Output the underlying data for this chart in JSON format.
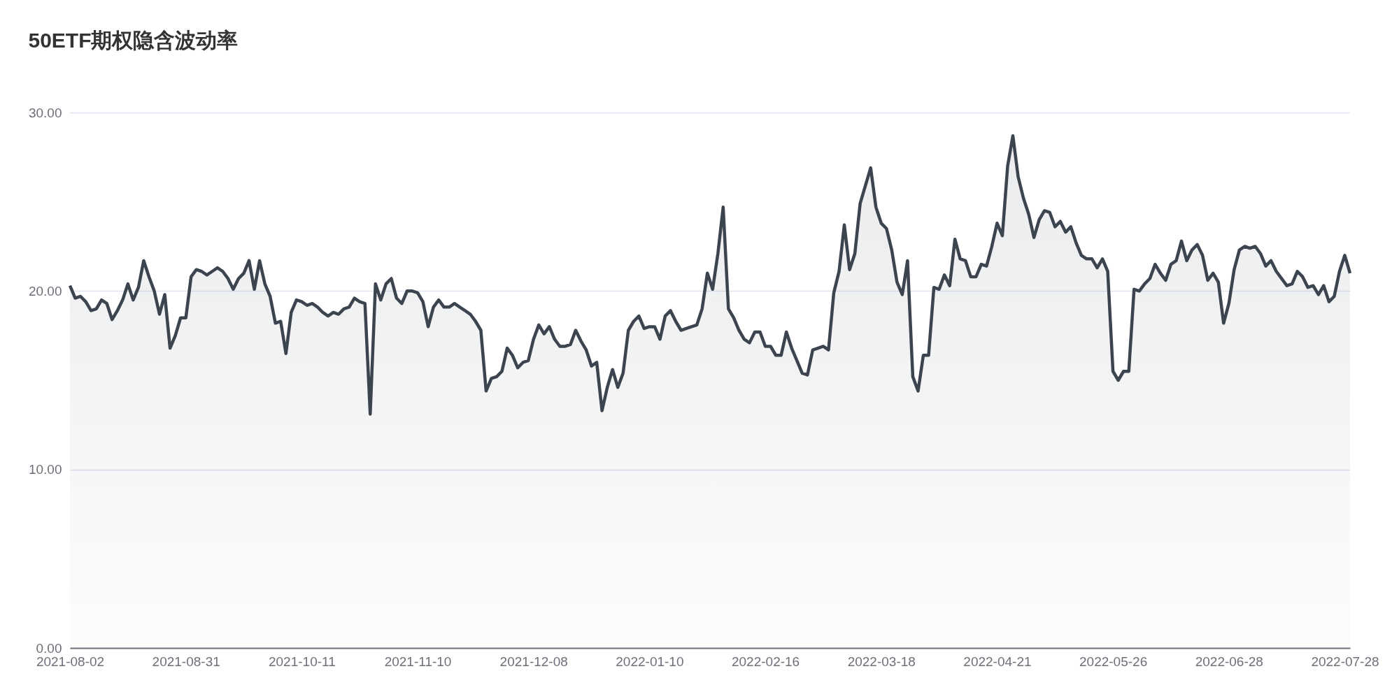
{
  "chart_data": {
    "type": "area",
    "title": "50ETF期权隐含波动率",
    "categories": [
      "2021-08-02",
      null,
      null,
      null,
      null,
      null,
      null,
      null,
      null,
      null,
      null,
      null,
      null,
      null,
      null,
      null,
      null,
      null,
      null,
      null,
      null,
      null,
      "2021-08-31",
      null,
      null,
      null,
      null,
      null,
      null,
      null,
      null,
      null,
      null,
      null,
      null,
      null,
      null,
      null,
      null,
      null,
      null,
      null,
      null,
      null,
      "2021-10-11",
      null,
      null,
      null,
      null,
      null,
      null,
      null,
      null,
      null,
      null,
      null,
      null,
      null,
      null,
      null,
      null,
      null,
      null,
      null,
      null,
      null,
      "2021-11-10",
      null,
      null,
      null,
      null,
      null,
      null,
      null,
      null,
      null,
      null,
      null,
      null,
      null,
      null,
      null,
      null,
      null,
      null,
      null,
      null,
      null,
      "2021-12-08",
      null,
      null,
      null,
      null,
      null,
      null,
      null,
      null,
      null,
      null,
      null,
      null,
      null,
      null,
      null,
      null,
      null,
      null,
      null,
      null,
      null,
      "2022-01-10",
      null,
      null,
      null,
      null,
      null,
      null,
      null,
      null,
      null,
      null,
      null,
      null,
      null,
      null,
      null,
      null,
      null,
      null,
      null,
      null,
      null,
      "2022-02-16",
      null,
      null,
      null,
      null,
      null,
      null,
      null,
      null,
      null,
      null,
      null,
      null,
      null,
      null,
      null,
      null,
      null,
      null,
      null,
      null,
      null,
      "2022-03-18",
      null,
      null,
      null,
      null,
      null,
      null,
      null,
      null,
      null,
      null,
      null,
      null,
      null,
      null,
      null,
      null,
      null,
      null,
      null,
      null,
      null,
      "2022-04-21",
      null,
      null,
      null,
      null,
      null,
      null,
      null,
      null,
      null,
      null,
      null,
      null,
      null,
      null,
      null,
      null,
      null,
      null,
      null,
      null,
      null,
      "2022-05-26",
      null,
      null,
      null,
      null,
      null,
      null,
      null,
      null,
      null,
      null,
      null,
      null,
      null,
      null,
      null,
      null,
      null,
      null,
      null,
      null,
      null,
      "2022-06-28",
      null,
      null,
      null,
      null,
      null,
      null,
      null,
      null,
      null,
      null,
      null,
      null,
      null,
      null,
      null,
      null,
      null,
      null,
      null,
      null,
      null,
      "2022-07-28",
      null
    ],
    "series": [
      {
        "color": "#3b444f",
        "values": [
          20.3,
          19.6,
          19.7,
          19.4,
          18.9,
          19.0,
          19.5,
          19.3,
          18.4,
          18.9,
          19.5,
          20.4,
          19.5,
          20.2,
          21.7,
          20.8,
          20.0,
          18.7,
          19.8,
          16.8,
          17.5,
          18.5,
          18.5,
          20.8,
          21.2,
          21.1,
          20.9,
          21.1,
          21.3,
          21.1,
          20.7,
          20.1,
          20.7,
          21.0,
          21.7,
          20.1,
          21.7,
          20.4,
          19.7,
          18.2,
          18.3,
          16.5,
          18.8,
          19.5,
          19.4,
          19.2,
          19.3,
          19.1,
          18.8,
          18.6,
          18.8,
          18.7,
          19.0,
          19.1,
          19.6,
          19.4,
          19.3,
          13.1,
          20.4,
          19.5,
          20.4,
          20.7,
          19.6,
          19.3,
          20.0,
          20.0,
          19.9,
          19.4,
          18.0,
          19.1,
          19.5,
          19.1,
          19.1,
          19.3,
          19.1,
          18.9,
          18.7,
          18.3,
          17.8,
          14.4,
          15.1,
          15.2,
          15.5,
          16.8,
          16.4,
          15.7,
          16.0,
          16.1,
          17.3,
          18.1,
          17.6,
          18.0,
          17.3,
          16.9,
          16.9,
          17.0,
          17.8,
          17.2,
          16.7,
          15.8,
          16.0,
          13.3,
          14.6,
          15.6,
          14.6,
          15.4,
          17.8,
          18.3,
          18.6,
          17.9,
          18.0,
          18.0,
          17.3,
          18.6,
          18.9,
          18.3,
          17.8,
          17.9,
          18.0,
          18.1,
          19.0,
          21.0,
          20.1,
          22.1,
          24.7,
          19.0,
          18.5,
          17.8,
          17.3,
          17.1,
          17.7,
          17.7,
          16.9,
          16.9,
          16.4,
          16.4,
          17.7,
          16.8,
          16.1,
          15.4,
          15.3,
          16.7,
          16.8,
          16.9,
          16.7,
          19.9,
          21.1,
          23.7,
          21.2,
          22.1,
          24.9,
          25.9,
          26.9,
          24.7,
          23.8,
          23.5,
          22.3,
          20.5,
          19.8,
          21.7,
          15.2,
          14.4,
          16.4,
          16.4,
          20.2,
          20.1,
          20.9,
          20.3,
          22.9,
          21.8,
          21.7,
          20.8,
          20.8,
          21.5,
          21.4,
          22.5,
          23.8,
          23.1,
          27.0,
          28.7,
          26.4,
          25.2,
          24.3,
          23.0,
          24.0,
          24.5,
          24.4,
          23.6,
          23.9,
          23.3,
          23.6,
          22.7,
          22.0,
          21.8,
          21.8,
          21.3,
          21.8,
          21.1,
          15.5,
          15.0,
          15.5,
          15.5,
          20.1,
          20.0,
          20.4,
          20.7,
          21.5,
          21.0,
          20.6,
          21.5,
          21.7,
          22.8,
          21.7,
          22.3,
          22.6,
          22.0,
          20.6,
          21.0,
          20.5,
          18.2,
          19.3,
          21.2,
          22.3,
          22.5,
          22.4,
          22.5,
          22.1,
          21.4,
          21.7,
          21.1,
          20.7,
          20.3,
          20.4,
          21.1,
          20.8,
          20.2,
          20.3,
          19.8,
          20.3,
          19.4,
          19.7,
          21.1,
          22.0,
          21.0
        ]
      }
    ],
    "ylim": [
      0,
      30
    ],
    "yticks": [
      {
        "value": 0,
        "label": "0.00"
      },
      {
        "value": 10,
        "label": "10.00"
      },
      {
        "value": 20,
        "label": "20.00"
      },
      {
        "value": 30,
        "label": "30.00"
      }
    ],
    "grid": "y",
    "marker": "none",
    "line_style": "solid"
  }
}
